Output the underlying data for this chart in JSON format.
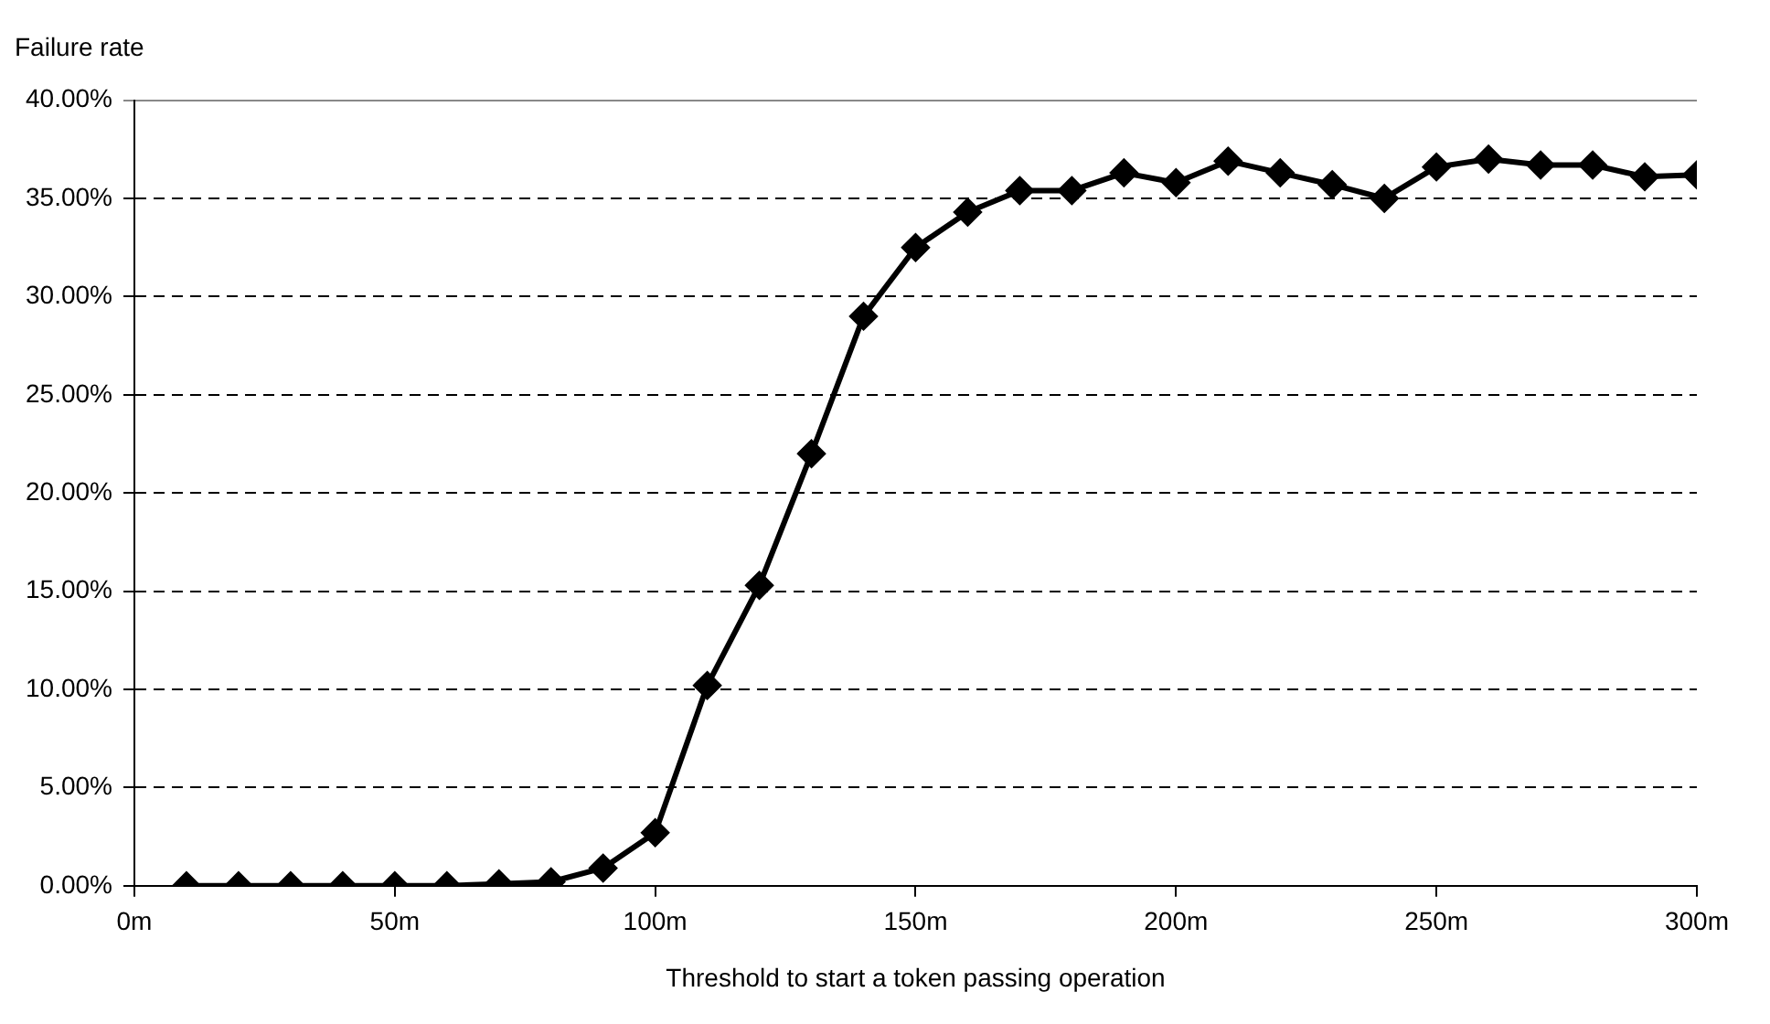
{
  "chart_data": {
    "type": "line",
    "ylabel": "Failure rate",
    "xlabel": "Threshold to start a token passing operation",
    "x": [
      10,
      20,
      30,
      40,
      50,
      60,
      70,
      80,
      90,
      100,
      110,
      120,
      130,
      140,
      150,
      160,
      170,
      180,
      190,
      200,
      210,
      220,
      230,
      240,
      250,
      260,
      270,
      280,
      290,
      300
    ],
    "series": [
      {
        "color": "#000000",
        "values": [
          0,
          0,
          0,
          0,
          0,
          0,
          0.1,
          0.2,
          0.9,
          2.7,
          10.2,
          15.3,
          22.0,
          29.0,
          32.5,
          34.3,
          35.4,
          35.4,
          36.3,
          35.8,
          36.9,
          36.3,
          35.7,
          35.0,
          36.6,
          37.0,
          36.7,
          36.7,
          36.1,
          36.2
        ]
      }
    ],
    "xlim": [
      0,
      300
    ],
    "xticks": [
      {
        "value": 0,
        "label": "0m"
      },
      {
        "value": 50,
        "label": "50m"
      },
      {
        "value": 100,
        "label": "100m"
      },
      {
        "value": 150,
        "label": "150m"
      },
      {
        "value": 200,
        "label": "200m"
      },
      {
        "value": 250,
        "label": "250m"
      },
      {
        "value": 300,
        "label": "300m"
      }
    ],
    "ylim": [
      0,
      40
    ],
    "yticks": [
      {
        "value": 0,
        "label": "0.00%"
      },
      {
        "value": 5,
        "label": "5.00%"
      },
      {
        "value": 10,
        "label": "10.00%"
      },
      {
        "value": 15,
        "label": "15.00%"
      },
      {
        "value": 20,
        "label": "20.00%"
      },
      {
        "value": 25,
        "label": "25.00%"
      },
      {
        "value": 30,
        "label": "30.00%"
      },
      {
        "value": 35,
        "label": "35.00%"
      },
      {
        "value": 40,
        "label": "40.00%"
      }
    ],
    "grid": "y",
    "legend": false,
    "marker": "diamond",
    "line_style": "solid"
  }
}
